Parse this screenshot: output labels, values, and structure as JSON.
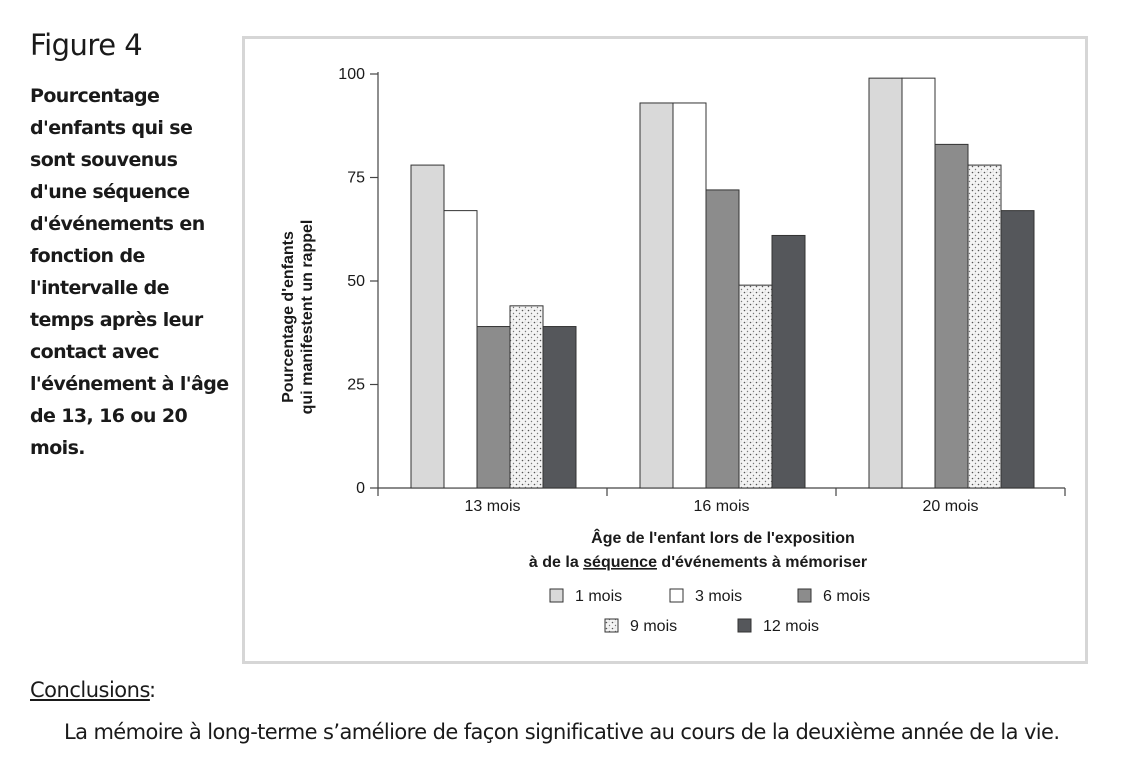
{
  "figure": {
    "title": "Figure 4",
    "caption": "Pourcentage d'enfants qui se sont souvenus d'une séquence d'événements en fonction de l'intervalle de temps après leur contact avec l'événement à l'âge de 13, 16 ou 20 mois."
  },
  "conclusions": {
    "label": "Conclusions",
    "colon": ":",
    "text": "La mémoire à long-terme s’améliore de façon significative au cours de la deuxième année de la vie."
  },
  "chart_data": {
    "type": "bar",
    "categories": [
      "13 mois",
      "16 mois",
      "20 mois"
    ],
    "series": [
      {
        "name": "1 mois",
        "values": [
          78,
          93,
          99
        ]
      },
      {
        "name": "3 mois",
        "values": [
          67,
          93,
          99
        ]
      },
      {
        "name": "6 mois",
        "values": [
          39,
          72,
          83
        ]
      },
      {
        "name": "9 mois",
        "values": [
          44,
          49,
          78
        ]
      },
      {
        "name": "12 mois",
        "values": [
          39,
          61,
          67
        ]
      }
    ],
    "series_fills": [
      "#d9d9d9",
      "#ffffff",
      "#8c8c8c",
      "dotted",
      "#55575b"
    ],
    "ylabel_line1": "Pourcentage d'enfants",
    "ylabel_line2": "qui manifestent un rappel",
    "xlabel_line1": "Âge de l'enfant lors de l'exposition",
    "xlabel_line2_before": "à de la ",
    "xlabel_line2_underlined": "séquence",
    "xlabel_line2_after": " d'événements à mémoriser",
    "yticks": [
      0,
      25,
      50,
      75,
      100
    ],
    "ylim": [
      0,
      100
    ],
    "grid": false,
    "legend_placement": "bottom-center"
  }
}
